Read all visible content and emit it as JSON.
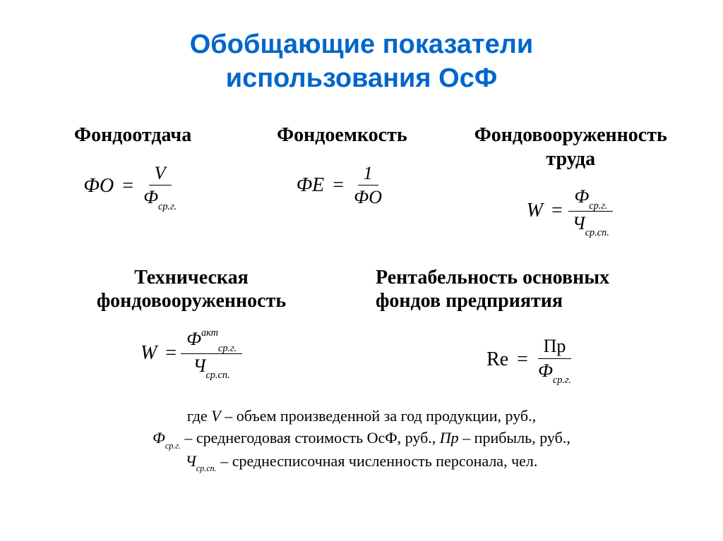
{
  "title_line1": "Обобщающие показатели",
  "title_line2": "использования ОсФ",
  "title_color": "#0066cc",
  "row1": {
    "c1_heading": "Фондоотдача",
    "c1_lhs": "ФО",
    "c1_num": "V",
    "c1_den_sym": "Ф",
    "c1_den_sub": "ср.г.",
    "c2_heading": "Фондоемкость",
    "c2_lhs": "ФЕ",
    "c2_num": "1",
    "c2_den": "ФО",
    "c3_heading_l1": "Фондовооруженность",
    "c3_heading_l2": "труда",
    "c3_lhs": "W",
    "c3_num_sym": "Ф",
    "c3_num_sub": "ср.г.",
    "c3_den_sym": "Ч",
    "c3_den_sub": "ср.сп."
  },
  "row2": {
    "c1_heading_l1": "Техническая",
    "c1_heading_l2": "фондовооруженность",
    "c1_lhs": "W",
    "c1_num_sym": "Ф",
    "c1_num_sup": "акт",
    "c1_num_sub": "ср.г.",
    "c1_den_sym": "Ч",
    "c1_den_sub": "ср.сп.",
    "c2_heading_l1": "Рентабельность основных",
    "c2_heading_l2": "фондов предприятия",
    "c2_lhs": "Re",
    "c2_num": "Пр",
    "c2_den_sym": "Ф",
    "c2_den_sub": "ср.г."
  },
  "legend": {
    "l1_pre": "где ",
    "l1_v": "V",
    "l1_post": " – объем произведенной за год продукции, руб.,",
    "l2_sym": "Ф",
    "l2_sub": "ср.г.",
    "l2_mid": " – среднегодовая стоимость ОсФ, руб., ",
    "l2_pr": "Пр",
    "l2_post": " – прибыль, руб.,",
    "l3_sym": "Ч",
    "l3_sub": "ср.сп.",
    "l3_post": " – среднесписочная численность персонала, чел."
  }
}
